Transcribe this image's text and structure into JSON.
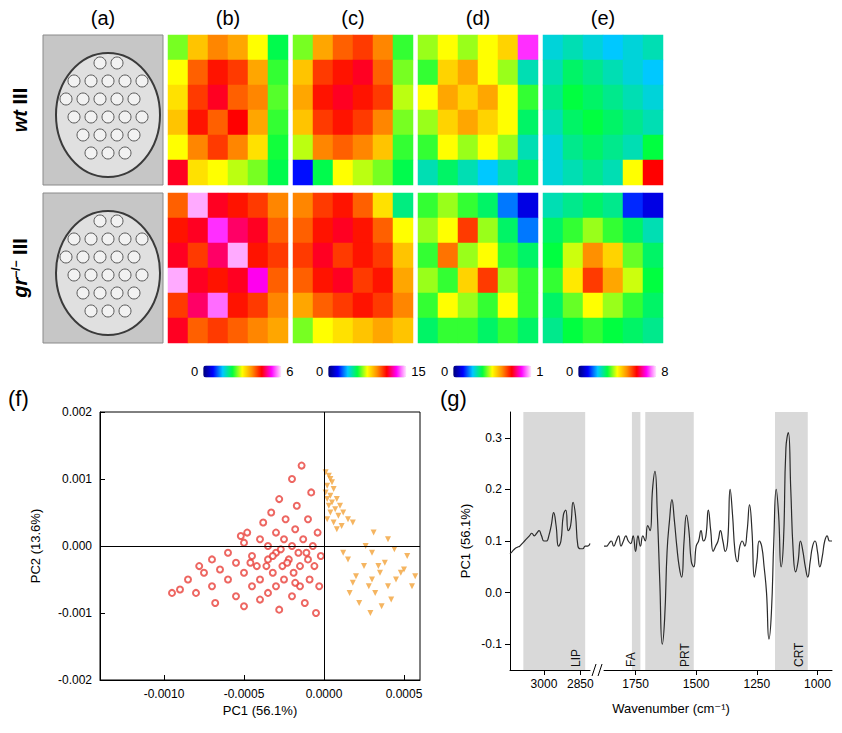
{
  "micrograph_panel": "(a)",
  "rows": [
    {
      "genotype": "wt",
      "stage": "III"
    },
    {
      "genotype": "gr",
      "superscript": "−/−",
      "stage": "III"
    }
  ],
  "chart_data": [
    {
      "type": "heatmap",
      "panel": "(b)",
      "colorbar_range": [
        0,
        6
      ],
      "colorbar_ticks": [
        0,
        6
      ],
      "maps": [
        [
          [
            2.6,
            3.4,
            3.8,
            3.6,
            3.0,
            2.2
          ],
          [
            3.0,
            4.0,
            4.4,
            4.2,
            3.6,
            2.4
          ],
          [
            3.2,
            4.2,
            4.6,
            4.0,
            3.8,
            2.5
          ],
          [
            3.4,
            4.4,
            4.0,
            4.5,
            3.6,
            2.4
          ],
          [
            3.0,
            3.8,
            4.2,
            3.8,
            3.2,
            2.3
          ],
          [
            4.6,
            3.2,
            3.0,
            2.8,
            2.6,
            2.2
          ]
        ],
        [
          [
            4.0,
            5.8,
            4.6,
            4.4,
            4.2,
            3.8
          ],
          [
            4.4,
            4.6,
            5.4,
            4.8,
            4.6,
            4.0
          ],
          [
            4.6,
            4.2,
            4.8,
            5.8,
            4.4,
            4.2
          ],
          [
            5.8,
            4.6,
            4.4,
            4.6,
            5.2,
            4.0
          ],
          [
            4.2,
            4.8,
            5.6,
            4.4,
            4.2,
            3.8
          ],
          [
            4.6,
            4.0,
            4.2,
            4.0,
            3.8,
            3.6
          ]
        ]
      ]
    },
    {
      "type": "heatmap",
      "panel": "(c)",
      "colorbar_range": [
        0,
        15
      ],
      "colorbar_ticks": [
        0,
        15
      ],
      "maps": [
        [
          [
            6.5,
            9.0,
            10.0,
            10.5,
            9.5,
            6.0
          ],
          [
            8.5,
            10.5,
            11.0,
            11.5,
            10.0,
            6.5
          ],
          [
            9.0,
            11.0,
            11.5,
            11.0,
            10.5,
            7.0
          ],
          [
            8.5,
            10.5,
            11.0,
            10.5,
            9.5,
            6.5
          ],
          [
            7.0,
            9.5,
            10.0,
            9.5,
            8.5,
            6.0
          ],
          [
            2.0,
            5.5,
            7.5,
            7.0,
            6.5,
            5.5
          ]
        ],
        [
          [
            9.5,
            10.5,
            11.0,
            10.0,
            8.0,
            5.0
          ],
          [
            10.0,
            11.0,
            11.5,
            11.0,
            10.0,
            7.5
          ],
          [
            10.5,
            11.5,
            10.5,
            11.0,
            10.5,
            8.5
          ],
          [
            10.0,
            11.0,
            11.5,
            10.5,
            11.0,
            9.0
          ],
          [
            9.0,
            10.0,
            10.5,
            11.0,
            10.5,
            9.5
          ],
          [
            6.5,
            7.5,
            8.0,
            8.5,
            9.0,
            8.5
          ]
        ]
      ]
    },
    {
      "type": "heatmap",
      "panel": "(d)",
      "colorbar_range": [
        0,
        1
      ],
      "colorbar_ticks": [
        0,
        1
      ],
      "maps": [
        [
          [
            0.45,
            0.5,
            0.45,
            0.5,
            0.55,
            0.9
          ],
          [
            0.4,
            0.55,
            0.6,
            0.5,
            0.45,
            0.3
          ],
          [
            0.5,
            0.6,
            0.55,
            0.6,
            0.5,
            0.4
          ],
          [
            0.45,
            0.55,
            0.6,
            0.55,
            0.5,
            0.35
          ],
          [
            0.4,
            0.5,
            0.45,
            0.5,
            0.45,
            0.3
          ],
          [
            0.3,
            0.35,
            0.3,
            0.25,
            0.3,
            0.35
          ]
        ],
        [
          [
            0.4,
            0.45,
            0.4,
            0.35,
            0.2,
            0.1
          ],
          [
            0.45,
            0.5,
            0.7,
            0.45,
            0.35,
            0.2
          ],
          [
            0.4,
            0.65,
            0.45,
            0.5,
            0.4,
            0.35
          ],
          [
            0.45,
            0.4,
            0.55,
            0.7,
            0.45,
            0.4
          ],
          [
            0.4,
            0.5,
            0.45,
            0.4,
            0.5,
            0.4
          ],
          [
            0.35,
            0.4,
            0.4,
            0.35,
            0.4,
            0.35
          ]
        ]
      ]
    },
    {
      "type": "heatmap",
      "panel": "(e)",
      "colorbar_range": [
        0,
        8
      ],
      "colorbar_ticks": [
        0,
        8
      ],
      "maps": [
        [
          [
            2.2,
            2.4,
            2.2,
            2.0,
            2.2,
            2.4
          ],
          [
            2.4,
            2.8,
            2.6,
            2.4,
            2.2,
            2.0
          ],
          [
            2.6,
            3.0,
            2.8,
            2.6,
            2.4,
            2.2
          ],
          [
            2.4,
            2.8,
            3.0,
            2.8,
            2.6,
            2.4
          ],
          [
            2.2,
            2.6,
            2.8,
            2.6,
            2.4,
            3.0
          ],
          [
            2.2,
            2.4,
            2.6,
            2.4,
            4.0,
            6.0
          ]
        ],
        [
          [
            2.4,
            2.6,
            2.8,
            2.6,
            1.2,
            0.8
          ],
          [
            2.8,
            3.2,
            3.6,
            3.2,
            2.8,
            2.4
          ],
          [
            3.0,
            3.8,
            5.0,
            4.4,
            3.4,
            2.8
          ],
          [
            3.2,
            4.2,
            5.6,
            4.8,
            3.8,
            3.0
          ],
          [
            2.8,
            3.4,
            4.0,
            3.6,
            3.2,
            2.8
          ],
          [
            2.6,
            3.0,
            3.2,
            3.0,
            2.8,
            2.6
          ]
        ]
      ]
    },
    {
      "type": "scatter",
      "panel": "(f)",
      "x_label": "PC1 (56.1%)",
      "y_label": "PC2 (13.6%)",
      "xlim": [
        -0.0014,
        0.0006
      ],
      "xticks": [
        {
          "value": -0.001,
          "label": "-0.0010"
        },
        -0.0005,
        {
          "value": 0,
          "label": "0.0000"
        },
        0.0005
      ],
      "ylim": [
        -0.002,
        0.002
      ],
      "yticks": [
        -0.002,
        -0.001,
        {
          "value": 0,
          "label": "0.000"
        },
        0.001,
        0.002
      ],
      "series": [
        {
          "color": "#e8403a",
          "marker": "circle_open",
          "x": [
            -0.0009,
            -0.00085,
            -0.0008,
            -0.00075,
            -0.0007,
            -0.0007,
            -0.00065,
            -0.0006,
            -0.0006,
            -0.00055,
            -0.00055,
            -0.0005,
            -0.0005,
            -0.0005,
            -0.00048,
            -0.00045,
            -0.00045,
            -0.00042,
            -0.0004,
            -0.0004,
            -0.0004,
            -0.00038,
            -0.00035,
            -0.00035,
            -0.00035,
            -0.00033,
            -0.00032,
            -0.0003,
            -0.0003,
            -0.0003,
            -0.00028,
            -0.00028,
            -0.00026,
            -0.00025,
            -0.00025,
            -0.00024,
            -0.00022,
            -0.0002,
            -0.0002,
            -0.0002,
            -0.00019,
            -0.00018,
            -0.00017,
            -0.00016,
            -0.00015,
            -0.00015,
            -0.00014,
            -0.00013,
            -0.00012,
            -0.0001,
            -0.0001,
            -9e-05,
            -8e-05,
            -7e-05,
            -6e-05,
            -5e-05,
            -4e-05,
            -3e-05,
            -2e-05,
            -0.00032,
            -0.00027,
            -0.00023,
            -0.00036,
            -0.00011,
            -0.00046,
            -0.00068,
            -0.00095,
            -0.00078,
            -0.00052,
            -0.00018
          ],
          "values": [
            -0.00065,
            -0.0005,
            -0.0007,
            -0.0004,
            -0.0006,
            -0.0002,
            -0.00035,
            -0.0005,
            -0.0001,
            -0.00075,
            -0.00025,
            -0.0004,
            5e-05,
            -0.0009,
            0.0002,
            -0.0006,
            -0.00015,
            -0.0003,
            0.0001,
            -0.0008,
            -0.0005,
            0.00035,
            -0.0002,
            -0.0007,
            0,
            0.0005,
            -0.0004,
            0.0002,
            -0.0001,
            -0.0006,
            0.0007,
            -0.00095,
            -0.0003,
            0.0001,
            -0.0005,
            0.0004,
            -0.0002,
            -0.00075,
            0,
            0.001,
            -0.0004,
            0.00025,
            0.0006,
            -0.0001,
            -0.0006,
            -0.0003,
            0.0012,
            0.0001,
            -0.00085,
            -0.0002,
            0.0004,
            -0.0005,
            0.0008,
            0,
            -0.0003,
            -0.001,
            0.0002,
            -0.0006,
            -0.00015,
            -0.00015,
            -5e-05,
            -0.00025,
            -0.0003,
            -0.0001,
            -0.00025,
            -0.00085,
            -0.0007,
            -0.0003,
            0.00015,
            -0.00055
          ]
        },
        {
          "color": "#f2a33a",
          "marker": "triangle_down",
          "x": [
            1e-05,
            3e-05,
            5e-05,
            2e-05,
            6e-05,
            1e-05,
            4e-05,
            8e-05,
            2e-05,
            5e-05,
            0.0001,
            3e-05,
            7e-05,
            0.00012,
            4e-05,
            9e-05,
            0.00015,
            6e-05,
            0.00011,
            2e-05,
            0.00018,
            8e-05,
            4e-05,
            0.0003,
            0.00035,
            0.0004,
            0.00025,
            0.00045,
            0.00032,
            0.0002,
            0.0005,
            0.00028,
            0.00038,
            0.00042,
            0.00015,
            0.00055,
            0.0003,
            0.00048,
            0.00022,
            0.00036,
            0.00018,
            0.00052,
            0.00026,
            0.00044,
            0.00034,
            0.00012,
            0.00057,
            0.00029,
            0.0004,
            0.00031,
            0.00016
          ],
          "values": [
            0.0011,
            0.00105,
            0.00095,
            0.0009,
            0.00085,
            0.0008,
            0.00075,
            0.0007,
            0.0007,
            0.00065,
            0.0006,
            0.0006,
            0.00055,
            0.0005,
            0.0005,
            0.00045,
            0.0004,
            0.00035,
            0.0003,
            0.0004,
            0.00035,
            0.00025,
            0.001,
            -0.0005,
            -0.0004,
            -0.0006,
            -0.0003,
            -0.0005,
            -0.0007,
            -0.00045,
            -0.00035,
            -0.0006,
            -0.00025,
            -0.0008,
            -0.0002,
            -0.0006,
            -0.0001,
            -0.0004,
            -0.00085,
            -0.0009,
            -0.00055,
            -0.00015,
            0,
            -5e-05,
            -0.0003,
            -0.0001,
            -0.00045,
            -0.001,
            0.0001,
            0.0002,
            -0.0007
          ]
        }
      ]
    },
    {
      "type": "line",
      "panel": "(g)",
      "x_label": "Wavenumber (cm⁻¹)",
      "y_label": "PC1 (56.1%)",
      "color": "#2b2b2b",
      "xlim": [
        [
          3140,
          2810
        ],
        [
          1880,
          940
        ]
      ],
      "xticks": [
        3000,
        2850,
        1750,
        1500,
        1250,
        1000
      ],
      "ylim": [
        -0.15,
        0.35
      ],
      "yticks": [
        -0.1,
        {
          "value": 0,
          "label": "0.0"
        },
        0.1,
        0.2,
        0.3
      ],
      "regions": [
        {
          "label": "LIP",
          "range": [
            3085,
            2830
          ]
        },
        {
          "label": "FA",
          "range": [
            1765,
            1730
          ]
        },
        {
          "label": "PRT",
          "range": [
            1710,
            1510
          ]
        },
        {
          "label": "CRT",
          "range": [
            1175,
            1040
          ]
        }
      ],
      "x": [
        3140,
        3130,
        3120,
        3110,
        3100,
        3090,
        3080,
        3070,
        3060,
        3050,
        3040,
        3030,
        3020,
        3010,
        3000,
        2990,
        2980,
        2970,
        2960,
        2950,
        2940,
        2930,
        2920,
        2910,
        2900,
        2890,
        2880,
        2870,
        2860,
        2850,
        2840,
        2830,
        2820,
        2810,
        1880,
        1870,
        1860,
        1850,
        1840,
        1830,
        1820,
        1810,
        1800,
        1790,
        1780,
        1770,
        1760,
        1750,
        1740,
        1730,
        1720,
        1710,
        1700,
        1690,
        1680,
        1670,
        1660,
        1650,
        1640,
        1630,
        1620,
        1610,
        1600,
        1590,
        1580,
        1570,
        1560,
        1550,
        1540,
        1530,
        1520,
        1510,
        1500,
        1490,
        1480,
        1470,
        1460,
        1450,
        1440,
        1430,
        1420,
        1410,
        1400,
        1390,
        1380,
        1370,
        1360,
        1350,
        1340,
        1330,
        1320,
        1310,
        1300,
        1290,
        1280,
        1270,
        1260,
        1250,
        1240,
        1230,
        1220,
        1210,
        1200,
        1190,
        1180,
        1170,
        1160,
        1150,
        1140,
        1130,
        1120,
        1110,
        1100,
        1090,
        1080,
        1070,
        1060,
        1050,
        1040,
        1030,
        1020,
        1010,
        1000,
        990,
        980,
        970,
        960,
        950,
        940
      ],
      "values": [
        0.075,
        0.08,
        0.085,
        0.088,
        0.09,
        0.095,
        0.1,
        0.105,
        0.11,
        0.115,
        0.11,
        0.115,
        0.12,
        0.11,
        0.1,
        0.1,
        0.11,
        0.13,
        0.155,
        0.13,
        0.09,
        0.1,
        0.15,
        0.16,
        0.12,
        0.13,
        0.175,
        0.15,
        0.09,
        0.085,
        0.085,
        0.09,
        0.09,
        0.095,
        0.09,
        0.09,
        0.095,
        0.1,
        0.09,
        0.1,
        0.11,
        0.09,
        0.1,
        0.11,
        0.1,
        0.095,
        0.11,
        0.08,
        0.11,
        0.09,
        0.11,
        0.1,
        0.13,
        0.12,
        0.2,
        0.235,
        0.15,
        0.02,
        -0.1,
        -0.05,
        0.08,
        0.14,
        0.18,
        0.14,
        0.09,
        0.05,
        0.03,
        0.1,
        0.15,
        0.12,
        0.06,
        0.05,
        0.09,
        0.1,
        0.12,
        0.1,
        0.11,
        0.16,
        0.12,
        0.08,
        0.09,
        0.1,
        0.12,
        0.1,
        0.08,
        0.1,
        0.2,
        0.15,
        0.08,
        0.06,
        0.09,
        0.1,
        0.09,
        0.12,
        0.17,
        0.12,
        0.03,
        0.06,
        0.1,
        0.09,
        0.05,
        0.0,
        -0.09,
        -0.04,
        0.1,
        0.2,
        0.15,
        0.05,
        0.1,
        0.28,
        0.31,
        0.2,
        0.08,
        0.04,
        0.06,
        0.1,
        0.08,
        0.05,
        0.03,
        0.06,
        0.09,
        0.1,
        0.08,
        0.05,
        0.07,
        0.1,
        0.11,
        0.1,
        0.1
      ]
    }
  ]
}
